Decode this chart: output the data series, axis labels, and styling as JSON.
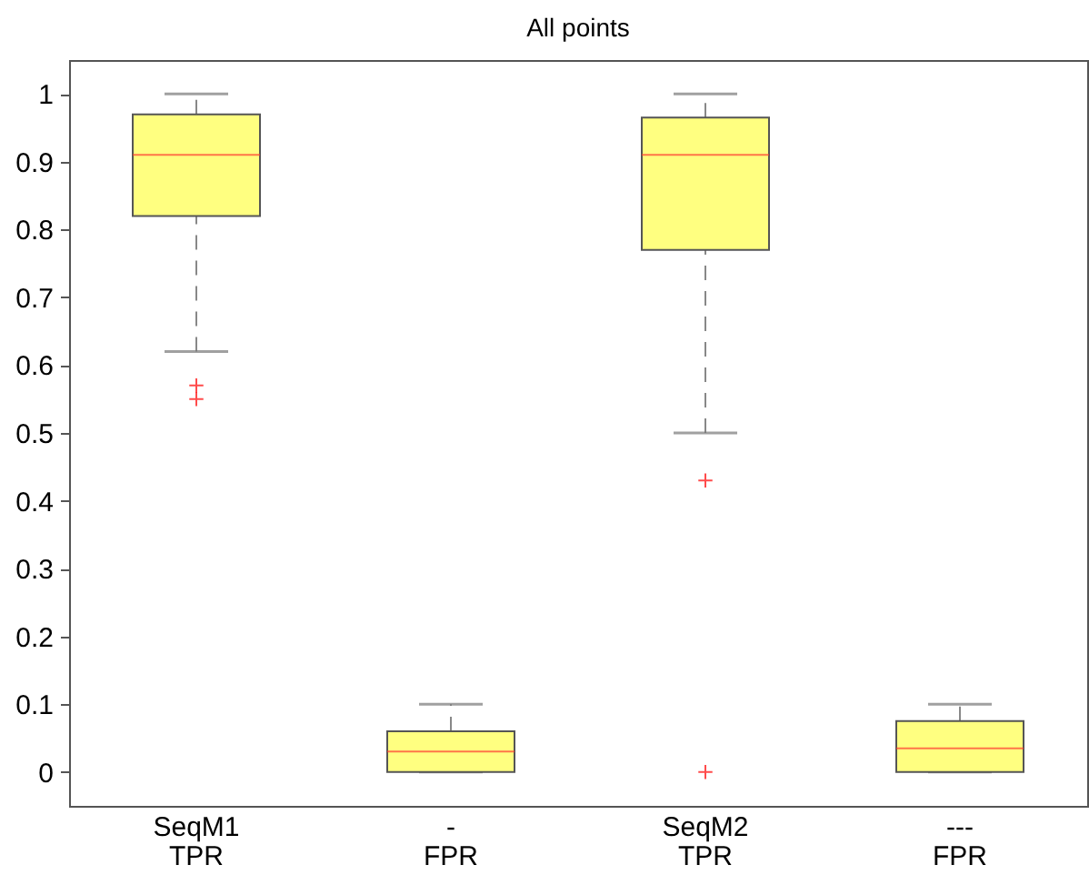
{
  "chart_data": {
    "type": "box",
    "title": "All points",
    "categories": [
      "SeqM1\nTPR",
      "-\nFPR",
      "SeqM2\nTPR",
      "---\nFPR"
    ],
    "series": [
      {
        "color": "#ffff80",
        "boxes": [
          {
            "low": 0.62,
            "q1": 0.82,
            "median": 0.91,
            "q3": 0.97,
            "high": 1.0,
            "outliers": [
              0.57,
              0.55
            ]
          },
          {
            "low": 0,
            "q1": 0,
            "median": 0.03,
            "q3": 0.06,
            "high": 0.1
          },
          {
            "low": 0.5,
            "q1": 0.77,
            "median": 0.91,
            "q3": 0.965,
            "high": 1.0,
            "outliers": [
              0.43,
              0
            ]
          },
          {
            "low": 0,
            "q1": 0,
            "median": 0.035,
            "q3": 0.075,
            "high": 0.1
          }
        ]
      }
    ],
    "ylim": [
      -0.05,
      1.05
    ],
    "yticks": [
      0,
      0.1,
      0.2,
      0.3,
      0.4,
      0.5,
      0.6,
      0.7,
      0.8,
      0.9,
      1
    ],
    "grid": false,
    "marker": "cross"
  }
}
